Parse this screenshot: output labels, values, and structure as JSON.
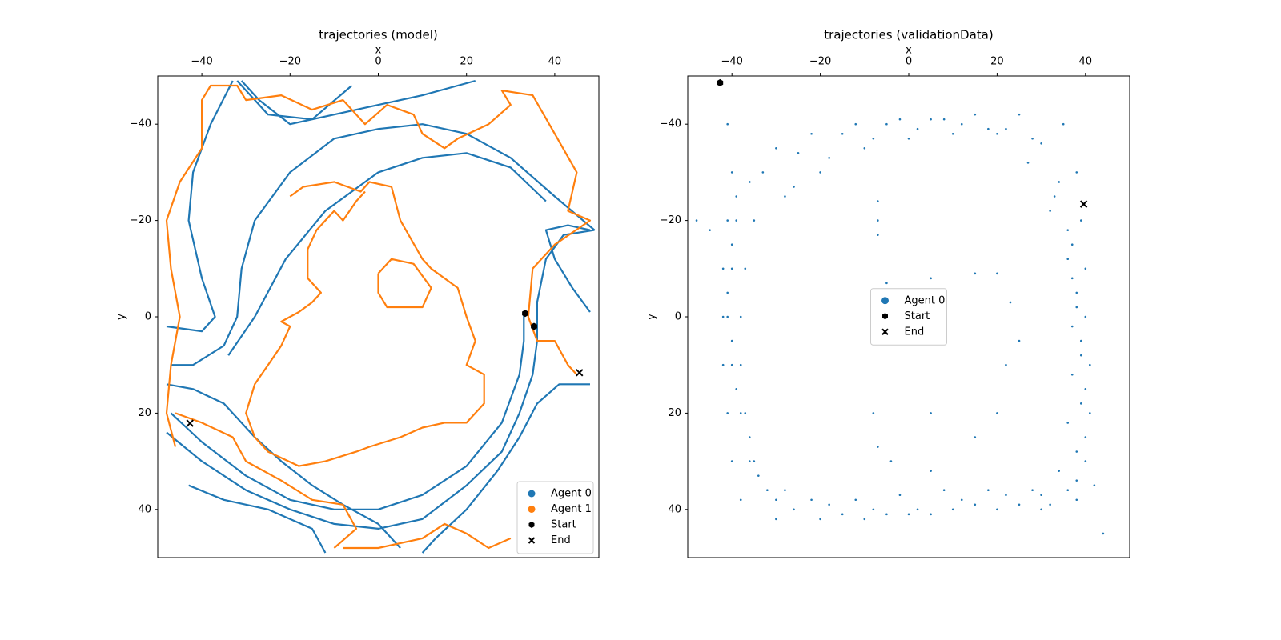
{
  "chart_data": [
    {
      "type": "line",
      "title": "trajectories (model)",
      "xlabel": "x",
      "ylabel": "y",
      "xlim": [
        -50,
        50
      ],
      "ylim": [
        -50,
        50
      ],
      "y_inverted": true,
      "legend": "lower right",
      "xticks": [
        {
          "value": -40,
          "label": "−40"
        },
        {
          "value": -20,
          "label": "−20"
        },
        0,
        20,
        40
      ],
      "yticks": [
        {
          "value": -40,
          "label": "−40"
        },
        {
          "value": -20,
          "label": "−20"
        },
        0,
        20,
        40
      ],
      "series": [
        {
          "name": "Agent 0",
          "color": "#1f77b4",
          "x": [
            33,
            33,
            32,
            28,
            20,
            10,
            0,
            -10,
            -20,
            -30,
            -40,
            -47,
            null,
            -47,
            -42,
            -35,
            -32,
            -31,
            -28,
            -20,
            -10,
            0,
            10,
            20,
            30,
            40,
            49,
            null,
            49,
            42,
            38,
            36,
            36,
            35,
            32,
            28,
            20,
            10,
            0,
            -10,
            -20,
            -30,
            -40,
            -48,
            null,
            -48,
            -40,
            -37,
            -40,
            -43,
            -42,
            -38,
            -33,
            null,
            -32,
            -25,
            -15,
            -6,
            null,
            -48,
            -42,
            -35,
            -28,
            -22,
            -15,
            -8,
            0,
            5,
            null,
            22,
            10,
            0,
            -10,
            -20,
            -27,
            -31,
            null,
            48,
            44,
            40,
            38,
            43,
            48,
            null,
            48,
            41,
            36,
            32,
            27,
            20,
            13,
            10,
            null,
            -43,
            -35,
            -25,
            -15,
            -12,
            null,
            -34,
            -28,
            -21,
            -12,
            0,
            10,
            20,
            30,
            38
          ],
          "y": [
            -1,
            5,
            12,
            22,
            31,
            37,
            40,
            40,
            38,
            33,
            26,
            20,
            null,
            10,
            10,
            6,
            0,
            -10,
            -20,
            -30,
            -37,
            -39,
            -40,
            -38,
            -33,
            -25,
            -18,
            null,
            -18,
            -17,
            -12,
            -3,
            5,
            12,
            20,
            28,
            35,
            42,
            44,
            43,
            40,
            36,
            30,
            24,
            null,
            2,
            3,
            0,
            -8,
            -20,
            -30,
            -40,
            -49,
            null,
            -49,
            -42,
            -41,
            -48,
            null,
            14,
            15,
            18,
            25,
            30,
            35,
            39,
            43,
            48,
            null,
            -49,
            -46,
            -44,
            -42,
            -40,
            -45,
            -49,
            null,
            -1,
            -6,
            -12,
            -18,
            -19,
            -18,
            null,
            14,
            14,
            18,
            25,
            32,
            40,
            46,
            49,
            null,
            35,
            38,
            40,
            44,
            49,
            null,
            8,
            0,
            -12,
            -22,
            -30,
            -33,
            -34,
            -31,
            -24
          ]
        },
        {
          "name": "Agent 1",
          "color": "#ff7f0e",
          "x": [
            -46,
            -40,
            -33,
            -30,
            -22,
            -15,
            -8,
            -5,
            -10,
            null,
            -20,
            -17,
            -10,
            -4,
            -2,
            3,
            5,
            10,
            12,
            18,
            20,
            22,
            20,
            24,
            24,
            22,
            20,
            15,
            10,
            5,
            -2,
            -5,
            -12,
            -18,
            -25,
            -28,
            -30,
            -28,
            -25,
            -22,
            -20,
            -22,
            -18,
            -15,
            -13,
            -16,
            -16,
            -14,
            -12,
            -10,
            -8,
            -5,
            -3,
            null,
            0,
            3,
            8,
            12,
            10,
            6,
            2,
            0,
            0,
            null,
            -46,
            -48,
            -47,
            -45,
            -47,
            -48,
            -45,
            -40,
            -40,
            -38,
            -32,
            -30,
            -22,
            -15,
            -8,
            -3,
            2,
            8,
            10,
            15,
            18,
            25,
            30,
            28,
            35,
            40,
            45,
            43,
            48,
            40,
            35,
            34,
            36,
            40,
            43,
            45,
            null,
            -8,
            0,
            10,
            15,
            20,
            25,
            30
          ],
          "y": [
            20,
            22,
            25,
            30,
            34,
            38,
            39,
            44,
            48,
            null,
            -25,
            -27,
            -28,
            -26,
            -28,
            -27,
            -20,
            -12,
            -10,
            -6,
            0,
            5,
            10,
            12,
            18,
            20,
            22,
            22,
            23,
            25,
            27,
            28,
            30,
            31,
            28,
            25,
            20,
            14,
            10,
            6,
            2,
            1,
            -1,
            -3,
            -5,
            -8,
            -14,
            -18,
            -20,
            -22,
            -20,
            -24,
            -26,
            null,
            -9,
            -12,
            -11,
            -6,
            -2,
            -2,
            -2,
            -5,
            -9,
            null,
            27,
            20,
            10,
            0,
            -10,
            -20,
            -28,
            -35,
            -45,
            -48,
            -48,
            -45,
            -46,
            -43,
            -45,
            -40,
            -44,
            -42,
            -38,
            -35,
            -37,
            -40,
            -44,
            -47,
            -46,
            -38,
            -30,
            -22,
            -20,
            -15,
            -10,
            0,
            5,
            5,
            10,
            12,
            null,
            48,
            48,
            46,
            43,
            45,
            48,
            46
          ]
        }
      ],
      "markers": [
        {
          "name": "Start",
          "symbol": "hexagon",
          "color": "#000000",
          "x": [
            33.3,
            35.3
          ],
          "y": [
            -0.7,
            2
          ]
        },
        {
          "name": "End",
          "symbol": "x",
          "color": "#000000",
          "x": [
            45.6,
            -42.7
          ],
          "y": [
            11.6,
            22.1
          ]
        }
      ]
    },
    {
      "type": "scatter",
      "title": "trajectories (validationData)",
      "xlabel": "x",
      "ylabel": "y",
      "xlim": [
        -50,
        50
      ],
      "ylim": [
        -50,
        50
      ],
      "y_inverted": true,
      "legend": "center",
      "xticks": [
        {
          "value": -40,
          "label": "−40"
        },
        {
          "value": -20,
          "label": "−20"
        },
        0,
        20,
        40
      ],
      "yticks": [
        {
          "value": -40,
          "label": "−40"
        },
        {
          "value": -20,
          "label": "−20"
        },
        0,
        20,
        40
      ],
      "series": [
        {
          "name": "Agent 0",
          "color": "#1f77b4",
          "x": [
            -40,
            -41,
            -42,
            -42,
            -42,
            -41,
            -40,
            -38,
            -30,
            -20,
            -10,
            0,
            10,
            20,
            30,
            38,
            40,
            41,
            41,
            40,
            40,
            39,
            38,
            35,
            25,
            15,
            5,
            -5,
            -15,
            -25,
            -33,
            -35,
            -37,
            -38,
            -38,
            -37,
            -36,
            -32,
            -22,
            -12,
            -2,
            8,
            18,
            28,
            34,
            36,
            37,
            37,
            37,
            36,
            34,
            30,
            20,
            10,
            0,
            -10,
            -20,
            -28,
            -7,
            -7,
            -7,
            -5,
            5,
            15,
            20,
            23,
            25,
            22,
            20,
            15,
            5,
            -8,
            -7,
            -4,
            5,
            44,
            42,
            -48,
            -45,
            -41,
            -39,
            -40,
            -41,
            -40,
            -39,
            -36,
            -34,
            -30,
            -26,
            -15,
            -5,
            5,
            15,
            25,
            32,
            36,
            38,
            39,
            39,
            38,
            36,
            32,
            27,
            18,
            8,
            -2,
            -12,
            -22,
            -30,
            -36,
            -39,
            -40,
            -41,
            -40,
            -38,
            -35,
            -28,
            -18,
            -8,
            2,
            12,
            22,
            30,
            38,
            40,
            40,
            39,
            38,
            37,
            33,
            28,
            22,
            12,
            2,
            -8,
            -18,
            -26
          ],
          "y": [
            -30,
            -20,
            -10,
            0,
            10,
            20,
            30,
            38,
            42,
            42,
            42,
            41,
            40,
            40,
            40,
            38,
            30,
            20,
            10,
            0,
            -10,
            -20,
            -30,
            -40,
            -42,
            -42,
            -41,
            -40,
            -38,
            -34,
            -30,
            -20,
            -10,
            0,
            10,
            20,
            30,
            36,
            38,
            38,
            37,
            36,
            36,
            36,
            32,
            22,
            12,
            2,
            -8,
            -18,
            -28,
            -36,
            -38,
            -38,
            -37,
            -35,
            -30,
            -25,
            -24,
            -20,
            -17,
            -7,
            -8,
            -9,
            -9,
            -3,
            5,
            10,
            20,
            25,
            20,
            20,
            27,
            30,
            32,
            45,
            35,
            -20,
            -18,
            -40,
            -25,
            -15,
            -5,
            5,
            15,
            25,
            33,
            38,
            40,
            41,
            41,
            41,
            39,
            39,
            39,
            36,
            28,
            18,
            8,
            -2,
            -12,
            -22,
            -32,
            -39,
            -41,
            -41,
            -40,
            -38,
            -35,
            -28,
            -20,
            -10,
            0,
            10,
            20,
            30,
            36,
            39,
            40,
            40,
            38,
            37,
            37,
            34,
            25,
            15,
            5,
            -5,
            -15,
            -25,
            -37,
            -39,
            -40,
            -39,
            -37,
            -33,
            -27
          ]
        }
      ],
      "markers": [
        {
          "name": "Start",
          "symbol": "hexagon",
          "color": "#000000",
          "x": [
            -42.7
          ],
          "y": [
            -48.6
          ]
        },
        {
          "name": "End",
          "symbol": "x",
          "color": "#000000",
          "x": [
            39.6
          ],
          "y": [
            -23.4
          ]
        }
      ]
    }
  ]
}
